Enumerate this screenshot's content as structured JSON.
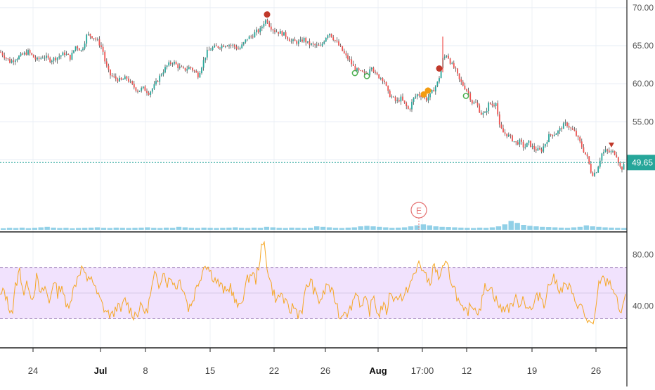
{
  "chart_data": [
    {
      "type": "candlestick",
      "pane": "price",
      "title": "",
      "xlabel": "",
      "ylabel": "",
      "ylim": [
        41,
        71
      ],
      "y_ticks": [
        "70.00",
        "65.00",
        "60.00",
        "55.00",
        "50.00"
      ],
      "last_price_label": "49.65",
      "last_price": 49.65,
      "earnings_marker": "E",
      "grid": true,
      "colors": {
        "up": "#26a69a",
        "down": "#ef5350",
        "wick": "#444444",
        "volume": "#7ec8e3",
        "last_price_line": "#26a69a"
      },
      "series_path": [
        [
          0,
          64.2
        ],
        [
          14,
          62.9
        ],
        [
          28,
          63.6
        ],
        [
          40,
          64.2
        ],
        [
          52,
          63.1
        ],
        [
          62,
          63.6
        ],
        [
          72,
          63.1
        ],
        [
          82,
          63.5
        ],
        [
          92,
          64.0
        ],
        [
          100,
          63.4
        ],
        [
          108,
          65.0
        ],
        [
          116,
          64.3
        ],
        [
          124,
          66.5
        ],
        [
          132,
          66.2
        ],
        [
          140,
          65.5
        ],
        [
          146,
          64.5
        ],
        [
          150,
          62.6
        ],
        [
          156,
          61.2
        ],
        [
          164,
          60.7
        ],
        [
          172,
          60.4
        ],
        [
          180,
          60.8
        ],
        [
          188,
          59.8
        ],
        [
          196,
          59.1
        ],
        [
          204,
          59.4
        ],
        [
          212,
          58.8
        ],
        [
          218,
          59.5
        ],
        [
          224,
          60.4
        ],
        [
          230,
          61.4
        ],
        [
          238,
          62.4
        ],
        [
          246,
          62.9
        ],
        [
          254,
          62.2
        ],
        [
          262,
          61.8
        ],
        [
          270,
          62.2
        ],
        [
          276,
          61.7
        ],
        [
          282,
          61.1
        ],
        [
          288,
          62.6
        ],
        [
          294,
          64.1
        ],
        [
          302,
          64.7
        ],
        [
          312,
          64.9
        ],
        [
          322,
          65.2
        ],
        [
          332,
          65.0
        ],
        [
          340,
          64.5
        ],
        [
          346,
          65.2
        ],
        [
          352,
          66.0
        ],
        [
          358,
          66.2
        ],
        [
          364,
          66.8
        ],
        [
          370,
          67.0
        ],
        [
          376,
          68.2
        ],
        [
          380,
          68.4
        ],
        [
          384,
          67.6
        ],
        [
          390,
          67.0
        ],
        [
          396,
          66.8
        ],
        [
          402,
          66.6
        ],
        [
          408,
          66.2
        ],
        [
          414,
          65.6
        ],
        [
          420,
          65.5
        ],
        [
          426,
          65.4
        ],
        [
          432,
          65.9
        ],
        [
          438,
          65.3
        ],
        [
          444,
          65.1
        ],
        [
          450,
          65.0
        ],
        [
          456,
          64.8
        ],
        [
          462,
          65.9
        ],
        [
          468,
          66.8
        ],
        [
          474,
          66.0
        ],
        [
          480,
          65.3
        ],
        [
          486,
          64.5
        ],
        [
          492,
          63.6
        ],
        [
          498,
          63.0
        ],
        [
          504,
          62.0
        ],
        [
          510,
          61.6
        ],
        [
          516,
          61.4
        ],
        [
          522,
          61.0
        ],
        [
          528,
          62.6
        ],
        [
          534,
          61.2
        ],
        [
          540,
          60.9
        ],
        [
          546,
          60.6
        ],
        [
          552,
          58.8
        ],
        [
          558,
          58.2
        ],
        [
          564,
          57.6
        ],
        [
          570,
          58.1
        ],
        [
          576,
          57.3
        ],
        [
          582,
          56.5
        ],
        [
          588,
          58.0
        ],
        [
          594,
          58.6
        ],
        [
          600,
          58.5
        ],
        [
          606,
          57.9
        ],
        [
          612,
          58.5
        ],
        [
          618,
          59.4
        ],
        [
          624,
          60.4
        ],
        [
          630,
          63.2
        ],
        [
          636,
          63.9
        ],
        [
          642,
          62.6
        ],
        [
          648,
          61.8
        ],
        [
          654,
          60.4
        ],
        [
          660,
          59.7
        ],
        [
          666,
          58.9
        ],
        [
          672,
          57.5
        ],
        [
          678,
          57.4
        ],
        [
          684,
          56.1
        ],
        [
          690,
          56.0
        ],
        [
          696,
          57.5
        ],
        [
          702,
          57.1
        ],
        [
          706,
          57.8
        ],
        [
          710,
          54.5
        ],
        [
          716,
          53.6
        ],
        [
          722,
          53.3
        ],
        [
          728,
          52.8
        ],
        [
          734,
          52.2
        ],
        [
          740,
          52.4
        ],
        [
          746,
          51.6
        ],
        [
          752,
          52.3
        ],
        [
          758,
          51.6
        ],
        [
          764,
          51.3
        ],
        [
          770,
          51.2
        ],
        [
          776,
          52.2
        ],
        [
          782,
          53.3
        ],
        [
          788,
          53.4
        ],
        [
          794,
          53.7
        ],
        [
          800,
          54.4
        ],
        [
          806,
          54.8
        ],
        [
          812,
          54.1
        ],
        [
          818,
          53.6
        ],
        [
          824,
          52.5
        ],
        [
          830,
          51.3
        ],
        [
          836,
          50.2
        ],
        [
          842,
          48.1
        ],
        [
          848,
          48.4
        ],
        [
          852,
          49.5
        ],
        [
          856,
          50.8
        ],
        [
          862,
          51.2
        ],
        [
          868,
          51.0
        ],
        [
          874,
          51.0
        ],
        [
          878,
          50.5
        ],
        [
          882,
          49.0
        ],
        [
          886,
          48.9
        ],
        [
          890,
          49.65
        ]
      ],
      "signal_markers": [
        {
          "label": "sell",
          "x": 380,
          "y": 69.1,
          "color": "#c0392b"
        },
        {
          "label": "buy",
          "x": 505,
          "y": 61.4,
          "color": "#4caf50"
        },
        {
          "label": "buy",
          "x": 522,
          "y": 61.0,
          "color": "#4caf50"
        },
        {
          "label": "sell",
          "x": 603,
          "y": 58.6,
          "color": "#f39c12"
        },
        {
          "label": "sell",
          "x": 609,
          "y": 59.1,
          "color": "#f39c12"
        },
        {
          "label": "sell",
          "x": 625,
          "y": 62.0,
          "color": "#c0392b"
        },
        {
          "label": "buy",
          "x": 663,
          "y": 58.4,
          "color": "#4caf50"
        }
      ],
      "sell_triangle": {
        "x": 870,
        "y": 51.9,
        "color": "#c0392b"
      },
      "volume_fraction": [
        0.15,
        0.2,
        0.18,
        0.22,
        0.16,
        0.2,
        0.25,
        0.3,
        0.22,
        0.18,
        0.2,
        0.15,
        0.18,
        0.2,
        0.22,
        0.25,
        0.2,
        0.18,
        0.22,
        0.2,
        0.18,
        0.2,
        0.22,
        0.25,
        0.2,
        0.18,
        0.22,
        0.2,
        0.3,
        0.25,
        0.2,
        0.18,
        0.22,
        0.2,
        0.18,
        0.2,
        0.22,
        0.25,
        0.2,
        0.18,
        0.22,
        0.2,
        0.3,
        0.25,
        0.2,
        0.18,
        0.22,
        0.2,
        0.18,
        0.2,
        0.35,
        0.3,
        0.25,
        0.2,
        0.18,
        0.22,
        0.25,
        0.35,
        0.4,
        0.35,
        0.3,
        0.25,
        0.2,
        0.22,
        0.25,
        0.35,
        0.45,
        0.55,
        0.45,
        0.35,
        0.3,
        0.28,
        0.25,
        0.22,
        0.2,
        0.18,
        0.22,
        0.2,
        0.25,
        0.35,
        0.55,
        0.9,
        0.7,
        0.5,
        0.4,
        0.35,
        0.3,
        0.28,
        0.25,
        0.22,
        0.2,
        0.25,
        0.3,
        0.45,
        0.35,
        0.3,
        0.25,
        0.22,
        0.2,
        0.18
      ]
    },
    {
      "type": "line",
      "pane": "rsi",
      "title": "",
      "xlabel": "",
      "ylabel": "",
      "ylim": [
        10,
        95
      ],
      "y_ticks": [
        "80.00",
        "40.00"
      ],
      "band": [
        30,
        70
      ],
      "midline": 50,
      "colors": {
        "line": "#f5a623",
        "band": "#f1e2fd",
        "band_line": "#a98fc0"
      },
      "series_path": [
        [
          0,
          47
        ],
        [
          6,
          52
        ],
        [
          12,
          40
        ],
        [
          18,
          36
        ],
        [
          22,
          55
        ],
        [
          28,
          68
        ],
        [
          34,
          50
        ],
        [
          40,
          58
        ],
        [
          46,
          45
        ],
        [
          52,
          62
        ],
        [
          58,
          48
        ],
        [
          64,
          55
        ],
        [
          70,
          42
        ],
        [
          76,
          60
        ],
        [
          82,
          50
        ],
        [
          88,
          57
        ],
        [
          94,
          38
        ],
        [
          100,
          45
        ],
        [
          106,
          55
        ],
        [
          112,
          66
        ],
        [
          118,
          70
        ],
        [
          124,
          58
        ],
        [
          130,
          64
        ],
        [
          136,
          52
        ],
        [
          142,
          45
        ],
        [
          148,
          38
        ],
        [
          154,
          34
        ],
        [
          160,
          32
        ],
        [
          166,
          40
        ],
        [
          172,
          36
        ],
        [
          178,
          45
        ],
        [
          184,
          38
        ],
        [
          190,
          33
        ],
        [
          196,
          35
        ],
        [
          202,
          40
        ],
        [
          208,
          34
        ],
        [
          214,
          48
        ],
        [
          220,
          64
        ],
        [
          226,
          56
        ],
        [
          232,
          68
        ],
        [
          238,
          58
        ],
        [
          244,
          62
        ],
        [
          250,
          55
        ],
        [
          256,
          60
        ],
        [
          262,
          52
        ],
        [
          268,
          38
        ],
        [
          274,
          44
        ],
        [
          280,
          55
        ],
        [
          286,
          64
        ],
        [
          292,
          74
        ],
        [
          298,
          68
        ],
        [
          304,
          62
        ],
        [
          310,
          58
        ],
        [
          316,
          54
        ],
        [
          322,
          50
        ],
        [
          328,
          56
        ],
        [
          334,
          44
        ],
        [
          340,
          38
        ],
        [
          346,
          48
        ],
        [
          352,
          60
        ],
        [
          358,
          66
        ],
        [
          364,
          60
        ],
        [
          368,
          72
        ],
        [
          372,
          84
        ],
        [
          376,
          88
        ],
        [
          380,
          72
        ],
        [
          384,
          60
        ],
        [
          388,
          52
        ],
        [
          394,
          44
        ],
        [
          400,
          50
        ],
        [
          406,
          42
        ],
        [
          412,
          36
        ],
        [
          418,
          40
        ],
        [
          424,
          34
        ],
        [
          430,
          38
        ],
        [
          436,
          54
        ],
        [
          442,
          60
        ],
        [
          448,
          50
        ],
        [
          454,
          44
        ],
        [
          460,
          48
        ],
        [
          466,
          58
        ],
        [
          472,
          50
        ],
        [
          478,
          44
        ],
        [
          484,
          30
        ],
        [
          490,
          38
        ],
        [
          496,
          34
        ],
        [
          502,
          44
        ],
        [
          508,
          52
        ],
        [
          514,
          38
        ],
        [
          520,
          44
        ],
        [
          526,
          36
        ],
        [
          532,
          48
        ],
        [
          538,
          32
        ],
        [
          544,
          40
        ],
        [
          550,
          36
        ],
        [
          556,
          52
        ],
        [
          562,
          44
        ],
        [
          568,
          50
        ],
        [
          574,
          44
        ],
        [
          580,
          54
        ],
        [
          586,
          60
        ],
        [
          592,
          66
        ],
        [
          596,
          75
        ],
        [
          600,
          70
        ],
        [
          606,
          62
        ],
        [
          612,
          58
        ],
        [
          618,
          72
        ],
        [
          624,
          62
        ],
        [
          630,
          68
        ],
        [
          636,
          72
        ],
        [
          642,
          60
        ],
        [
          648,
          52
        ],
        [
          654,
          40
        ],
        [
          660,
          34
        ],
        [
          666,
          36
        ],
        [
          672,
          42
        ],
        [
          678,
          36
        ],
        [
          684,
          40
        ],
        [
          690,
          54
        ],
        [
          696,
          56
        ],
        [
          702,
          50
        ],
        [
          708,
          42
        ],
        [
          714,
          36
        ],
        [
          720,
          40
        ],
        [
          726,
          38
        ],
        [
          732,
          46
        ],
        [
          738,
          42
        ],
        [
          744,
          46
        ],
        [
          750,
          40
        ],
        [
          756,
          36
        ],
        [
          762,
          44
        ],
        [
          768,
          50
        ],
        [
          774,
          42
        ],
        [
          780,
          54
        ],
        [
          786,
          62
        ],
        [
          792,
          58
        ],
        [
          798,
          52
        ],
        [
          804,
          56
        ],
        [
          810,
          54
        ],
        [
          816,
          46
        ],
        [
          822,
          42
        ],
        [
          828,
          38
        ],
        [
          834,
          30
        ],
        [
          840,
          26
        ],
        [
          844,
          22
        ],
        [
          848,
          38
        ],
        [
          852,
          56
        ],
        [
          856,
          64
        ],
        [
          860,
          58
        ],
        [
          866,
          60
        ],
        [
          872,
          54
        ],
        [
          876,
          48
        ],
        [
          880,
          38
        ],
        [
          884,
          36
        ],
        [
          890,
          45
        ]
      ]
    }
  ],
  "x_axis": {
    "tick_labels": [
      "24",
      "Jul",
      "8",
      "15",
      "22",
      "26",
      "Aug",
      "17:00",
      "12",
      "19",
      "26"
    ]
  }
}
